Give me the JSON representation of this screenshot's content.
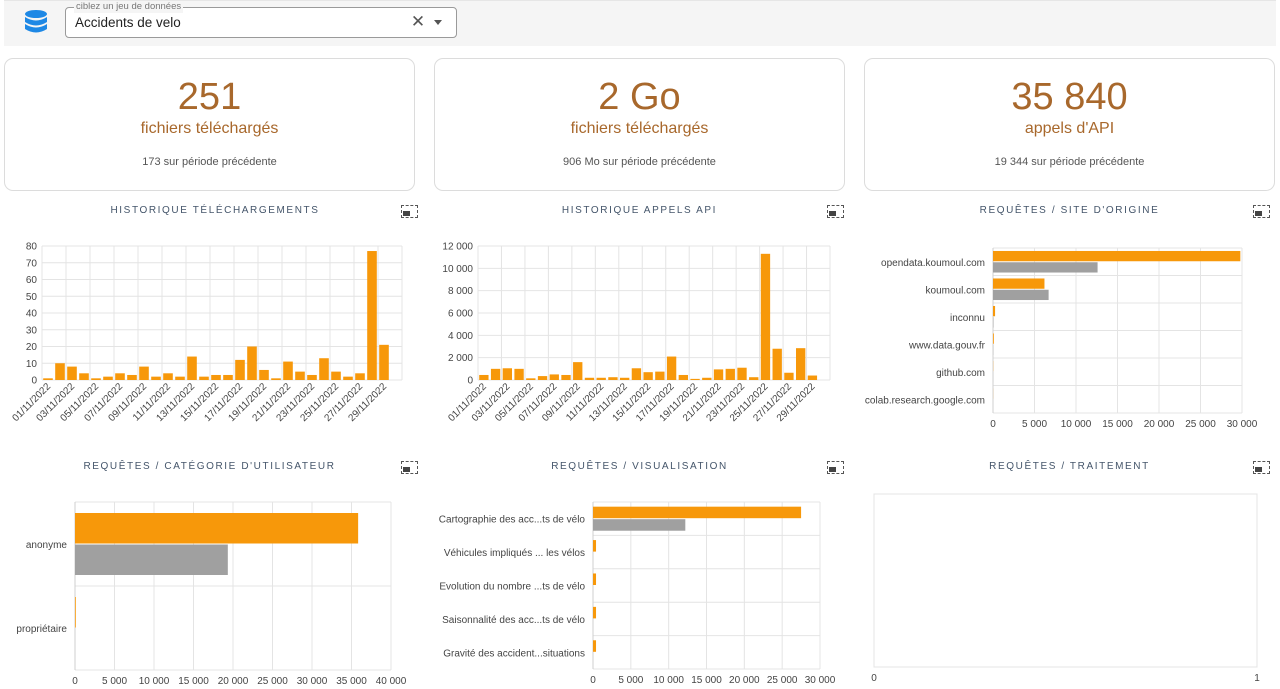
{
  "dataset_selector": {
    "label": "ciblez un jeu de données",
    "value": "Accidents de velo"
  },
  "kpis": [
    {
      "value": "251",
      "unit": "fichiers téléchargés",
      "previous": "173 sur période précédente"
    },
    {
      "value": "2 Go",
      "unit": "fichiers téléchargés",
      "previous": "906 Mo sur période précédente"
    },
    {
      "value": "35 840",
      "unit": "appels d'API",
      "previous": "19 344 sur période précédente"
    }
  ],
  "panels": {
    "downloads": {
      "title": "HISTORIQUE TÉLÉCHARGEMENTS"
    },
    "api_calls": {
      "title": "HISTORIQUE APPELS API"
    },
    "site": {
      "title": "REQUÊTES / SITE D'ORIGINE"
    },
    "user_category": {
      "title": "REQUÊTES / CATÉGORIE D'UTILISATEUR"
    },
    "visualisation": {
      "title": "REQUÊTES / VISUALISATION"
    },
    "processing": {
      "title": "REQUÊTES / TRAITEMENT"
    }
  },
  "colors": {
    "current": "#f7980a",
    "previous": "#a0a0a0",
    "kpi": "#a8682c",
    "grid": "#e4e4e4"
  },
  "chart_data": [
    {
      "id": "downloads",
      "type": "bar",
      "x": [
        "01/11/2022",
        "02/11/2022",
        "03/11/2022",
        "04/11/2022",
        "05/11/2022",
        "06/11/2022",
        "07/11/2022",
        "08/11/2022",
        "09/11/2022",
        "10/11/2022",
        "11/11/2022",
        "12/11/2022",
        "13/11/2022",
        "14/11/2022",
        "15/11/2022",
        "16/11/2022",
        "17/11/2022",
        "18/11/2022",
        "19/11/2022",
        "20/11/2022",
        "21/11/2022",
        "22/11/2022",
        "23/11/2022",
        "24/11/2022",
        "25/11/2022",
        "26/11/2022",
        "27/11/2022",
        "28/11/2022",
        "29/11/2022",
        "30/11/2022"
      ],
      "x_tick_labels": [
        "01/11/2022",
        "03/11/2022",
        "05/11/2022",
        "07/11/2022",
        "09/11/2022",
        "11/11/2022",
        "13/11/2022",
        "15/11/2022",
        "17/11/2022",
        "19/11/2022",
        "21/11/2022",
        "23/11/2022",
        "25/11/2022",
        "27/11/2022",
        "29/11/2022"
      ],
      "values": [
        1,
        10,
        8,
        4,
        1,
        2,
        4,
        3,
        8,
        2,
        4,
        2,
        14,
        2,
        3,
        3,
        12,
        20,
        6,
        1,
        11,
        5,
        3,
        13,
        5,
        2,
        4,
        77,
        21,
        0
      ],
      "ylim": [
        0,
        80
      ],
      "y_ticks": [
        "0",
        "10",
        "20",
        "30",
        "40",
        "50",
        "60",
        "70",
        "80"
      ],
      "grid": true
    },
    {
      "id": "api_calls",
      "type": "bar",
      "x": [
        "01/11/2022",
        "02/11/2022",
        "03/11/2022",
        "04/11/2022",
        "05/11/2022",
        "06/11/2022",
        "07/11/2022",
        "08/11/2022",
        "09/11/2022",
        "10/11/2022",
        "11/11/2022",
        "12/11/2022",
        "13/11/2022",
        "14/11/2022",
        "15/11/2022",
        "16/11/2022",
        "17/11/2022",
        "18/11/2022",
        "19/11/2022",
        "20/11/2022",
        "21/11/2022",
        "22/11/2022",
        "23/11/2022",
        "24/11/2022",
        "25/11/2022",
        "26/11/2022",
        "27/11/2022",
        "28/11/2022",
        "29/11/2022",
        "30/11/2022"
      ],
      "x_tick_labels": [
        "01/11/2022",
        "03/11/2022",
        "05/11/2022",
        "07/11/2022",
        "09/11/2022",
        "11/11/2022",
        "13/11/2022",
        "15/11/2022",
        "17/11/2022",
        "19/11/2022",
        "21/11/2022",
        "23/11/2022",
        "25/11/2022",
        "27/11/2022",
        "29/11/2022"
      ],
      "values": [
        450,
        1000,
        1050,
        1000,
        150,
        350,
        500,
        450,
        1600,
        200,
        200,
        250,
        200,
        1050,
        700,
        750,
        2100,
        450,
        100,
        200,
        950,
        1000,
        1100,
        250,
        11300,
        2800,
        650,
        2850,
        400,
        0
      ],
      "ylim": [
        0,
        12000
      ],
      "y_ticks": [
        "0",
        "2 000",
        "4 000",
        "6 000",
        "8 000",
        "10 000",
        "12 000"
      ],
      "grid": true
    },
    {
      "id": "site",
      "type": "bar",
      "orientation": "horizontal",
      "categories": [
        "opendata.koumoul.com",
        "koumoul.com",
        "inconnu",
        "www.data.gouv.fr",
        "github.com",
        "colab.research.google.com"
      ],
      "series": [
        {
          "values": [
            29800,
            6200,
            250,
            100,
            20,
            10
          ]
        },
        {
          "values": [
            12600,
            6700,
            50,
            20,
            5,
            0
          ]
        }
      ],
      "xlim": [
        0,
        30000
      ],
      "x_ticks": [
        "0",
        "5 000",
        "10 000",
        "15 000",
        "20 000",
        "25 000",
        "30 000"
      ],
      "grid": true
    },
    {
      "id": "user_category",
      "type": "bar",
      "orientation": "horizontal",
      "categories": [
        "anonyme",
        "propriétaire"
      ],
      "series": [
        {
          "values": [
            35840,
            100
          ]
        },
        {
          "values": [
            19344,
            0
          ]
        }
      ],
      "xlim": [
        0,
        40000
      ],
      "x_ticks": [
        "0",
        "5 000",
        "10 000",
        "15 000",
        "20 000",
        "25 000",
        "30 000",
        "35 000",
        "40 000"
      ],
      "grid": true
    },
    {
      "id": "visualisation",
      "type": "bar",
      "orientation": "horizontal",
      "categories": [
        "Cartographie des acc...ts de vélo",
        "Véhicules impliqués ... les vélos",
        "Evolution du nombre ...ts de vélo",
        "Saisonnalité des acc...ts de vélo",
        "Gravité des accident...situations"
      ],
      "series": [
        {
          "values": [
            27500,
            400,
            400,
            400,
            400
          ]
        },
        {
          "values": [
            12200,
            0,
            0,
            0,
            0
          ]
        }
      ],
      "xlim": [
        0,
        30000
      ],
      "x_ticks": [
        "0",
        "5 000",
        "10 000",
        "15 000",
        "20 000",
        "25 000",
        "30 000"
      ],
      "grid": true
    },
    {
      "id": "processing",
      "type": "bar",
      "orientation": "horizontal",
      "categories": [],
      "series": [],
      "xlim": [
        0,
        1
      ],
      "x_ticks": [
        "0",
        "1"
      ],
      "grid": false
    }
  ]
}
